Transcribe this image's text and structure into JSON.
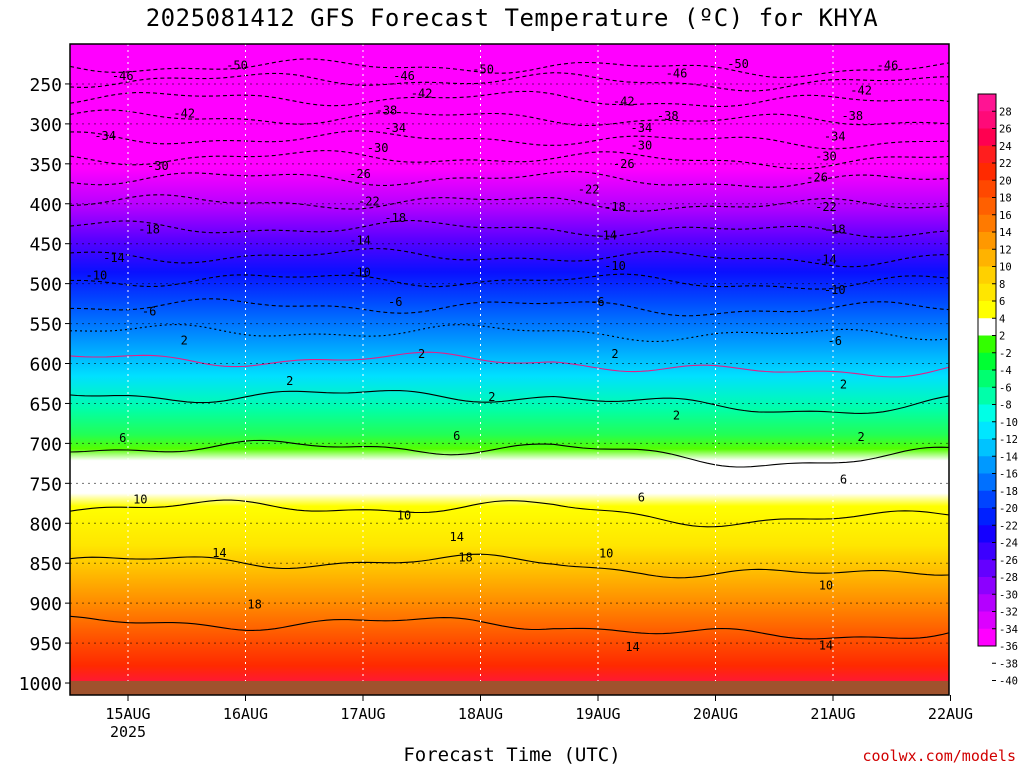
{
  "chart_data": {
    "type": "heatmap",
    "title": "2025081412 GFS Forecast Temperature (ºC) for KHYA",
    "xlabel": "Forecast Time (UTC)",
    "ylabel": "",
    "x_ticks": [
      "15AUG",
      "16AUG",
      "17AUG",
      "18AUG",
      "19AUG",
      "20AUG",
      "21AUG",
      "22AUG"
    ],
    "x_year_label": "2025",
    "y_ticks": [
      "250",
      "300",
      "350",
      "400",
      "450",
      "500",
      "550",
      "600",
      "650",
      "700",
      "750",
      "800",
      "850",
      "900",
      "950",
      "1000"
    ],
    "y_range_hPa": [
      200,
      1015
    ],
    "colorbar": {
      "ticks": [
        "28",
        "26",
        "24",
        "22",
        "20",
        "18",
        "16",
        "14",
        "12",
        "10",
        "8",
        "6",
        "4",
        "2",
        "-2",
        "-4",
        "-6",
        "-8",
        "-10",
        "-12",
        "-14",
        "-16",
        "-18",
        "-20",
        "-22",
        "-24",
        "-26",
        "-28",
        "-30",
        "-32",
        "-34",
        "-36",
        "-38",
        "-40"
      ],
      "colors": [
        "#ff1493",
        "#ff0a78",
        "#ff0050",
        "#ff1e1e",
        "#ff2a00",
        "#ff4800",
        "#ff6000",
        "#ff7a00",
        "#ff9800",
        "#ffb300",
        "#ffd000",
        "#ffe600",
        "#ffff00",
        "#ffffff",
        "#33ff00",
        "#00ff33",
        "#00ff70",
        "#00ffaa",
        "#00ffe6",
        "#00e6ff",
        "#00c3ff",
        "#0099ff",
        "#0070ff",
        "#0044ff",
        "#0020ff",
        "#1400ff",
        "#3c00ff",
        "#6400ff",
        "#8c00ff",
        "#b400ff",
        "#dc00ff",
        "#ff00ff"
      ]
    },
    "contour_labels": [
      {
        "text": "-50",
        "p": 227,
        "x": 0.19
      },
      {
        "text": "-50",
        "p": 232,
        "x": 0.47
      },
      {
        "text": "-50",
        "p": 225,
        "x": 0.76
      },
      {
        "text": "-46",
        "p": 240,
        "x": 0.06
      },
      {
        "text": "-46",
        "p": 240,
        "x": 0.38
      },
      {
        "text": "-46",
        "p": 237,
        "x": 0.69
      },
      {
        "text": "-46",
        "p": 227,
        "x": 0.93
      },
      {
        "text": "-42",
        "p": 287,
        "x": 0.13
      },
      {
        "text": "-42",
        "p": 262,
        "x": 0.4
      },
      {
        "text": "-42",
        "p": 272,
        "x": 0.63
      },
      {
        "text": "-42",
        "p": 258,
        "x": 0.9
      },
      {
        "text": "-38",
        "p": 283,
        "x": 0.36
      },
      {
        "text": "-38",
        "p": 290,
        "x": 0.68
      },
      {
        "text": "-38",
        "p": 290,
        "x": 0.89
      },
      {
        "text": "-34",
        "p": 315,
        "x": 0.04
      },
      {
        "text": "-34",
        "p": 305,
        "x": 0.37
      },
      {
        "text": "-34",
        "p": 305,
        "x": 0.65
      },
      {
        "text": "-34",
        "p": 316,
        "x": 0.87
      },
      {
        "text": "-30",
        "p": 353,
        "x": 0.1
      },
      {
        "text": "-30",
        "p": 330,
        "x": 0.35
      },
      {
        "text": "-30",
        "p": 327,
        "x": 0.65
      },
      {
        "text": "-30",
        "p": 341,
        "x": 0.86
      },
      {
        "text": "-26",
        "p": 363,
        "x": 0.33
      },
      {
        "text": "-26",
        "p": 350,
        "x": 0.63
      },
      {
        "text": "-26",
        "p": 367,
        "x": 0.85
      },
      {
        "text": "-22",
        "p": 397,
        "x": 0.34
      },
      {
        "text": "-22",
        "p": 382,
        "x": 0.59
      },
      {
        "text": "-22",
        "p": 404,
        "x": 0.86
      },
      {
        "text": "-18",
        "p": 432,
        "x": 0.09
      },
      {
        "text": "-18",
        "p": 418,
        "x": 0.37
      },
      {
        "text": "-18",
        "p": 404,
        "x": 0.62
      },
      {
        "text": "-18",
        "p": 432,
        "x": 0.87
      },
      {
        "text": "-14",
        "p": 468,
        "x": 0.05
      },
      {
        "text": "-14",
        "p": 446,
        "x": 0.33
      },
      {
        "text": "-14",
        "p": 440,
        "x": 0.61
      },
      {
        "text": "-14",
        "p": 470,
        "x": 0.86
      },
      {
        "text": "-10",
        "p": 490,
        "x": 0.03
      },
      {
        "text": "-10",
        "p": 486,
        "x": 0.33
      },
      {
        "text": "-10",
        "p": 478,
        "x": 0.62
      },
      {
        "text": "-10",
        "p": 508,
        "x": 0.87
      },
      {
        "text": "-6",
        "p": 535,
        "x": 0.09
      },
      {
        "text": "-6",
        "p": 523,
        "x": 0.37
      },
      {
        "text": "-6",
        "p": 523,
        "x": 0.6
      },
      {
        "text": "-6",
        "p": 572,
        "x": 0.87
      },
      {
        "text": "2",
        "p": 571,
        "x": 0.13
      },
      {
        "text": "2",
        "p": 588,
        "x": 0.4
      },
      {
        "text": "2",
        "p": 588,
        "x": 0.62
      },
      {
        "text": "2",
        "p": 626,
        "x": 0.88
      },
      {
        "text": "2",
        "p": 622,
        "x": 0.25
      },
      {
        "text": "2",
        "p": 642,
        "x": 0.48
      },
      {
        "text": "2",
        "p": 665,
        "x": 0.69
      },
      {
        "text": "2",
        "p": 692,
        "x": 0.9
      },
      {
        "text": "6",
        "p": 693,
        "x": 0.06
      },
      {
        "text": "6",
        "p": 691,
        "x": 0.44
      },
      {
        "text": "6",
        "p": 768,
        "x": 0.65
      },
      {
        "text": "6",
        "p": 745,
        "x": 0.88
      },
      {
        "text": "10",
        "p": 770,
        "x": 0.08
      },
      {
        "text": "10",
        "p": 790,
        "x": 0.38
      },
      {
        "text": "10",
        "p": 838,
        "x": 0.61
      },
      {
        "text": "10",
        "p": 878,
        "x": 0.86
      },
      {
        "text": "14",
        "p": 837,
        "x": 0.17
      },
      {
        "text": "14",
        "p": 817,
        "x": 0.44
      },
      {
        "text": "14",
        "p": 955,
        "x": 0.64
      },
      {
        "text": "14",
        "p": 953,
        "x": 0.86
      },
      {
        "text": "18",
        "p": 902,
        "x": 0.21
      },
      {
        "text": "18",
        "p": 843,
        "x": 0.45
      }
    ]
  }
}
